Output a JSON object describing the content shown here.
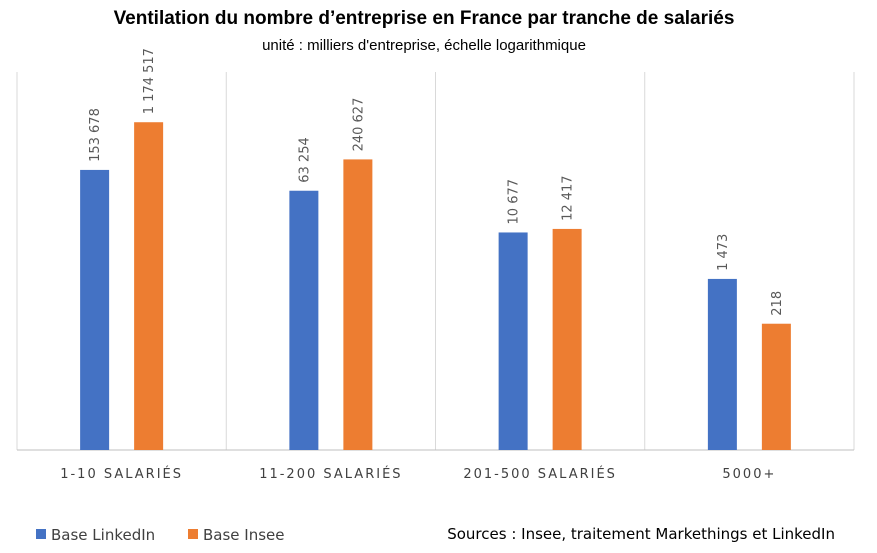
{
  "chart_data": {
    "type": "bar",
    "title": "Ventilation du nombre d’entreprise en France par tranche de salariés",
    "subtitle": "unité : milliers d'entreprise, échelle logarithmique",
    "categories": [
      "1-10 SALARIÉS",
      "11-200 SALARIÉS",
      "201-500 SALARIÉS",
      "5000+"
    ],
    "series": [
      {
        "name": "Base LinkedIn",
        "color": "#4472C4",
        "values": [
          153678,
          63254,
          10677,
          1473
        ],
        "labels": [
          "153 678",
          "63 254",
          "10 677",
          "1 473"
        ]
      },
      {
        "name": "Base Insee",
        "color": "#ED7D31",
        "values": [
          1174517,
          240627,
          12417,
          218
        ],
        "labels": [
          "1 174 517",
          "240 627",
          "12 417",
          "218"
        ]
      }
    ],
    "yscale": "log",
    "ylim": [
      1,
      10000000
    ],
    "grid": "vertical separators",
    "legend": "bottom-left"
  },
  "source": "Sources : Insee, traitement Markethings et LinkedIn"
}
